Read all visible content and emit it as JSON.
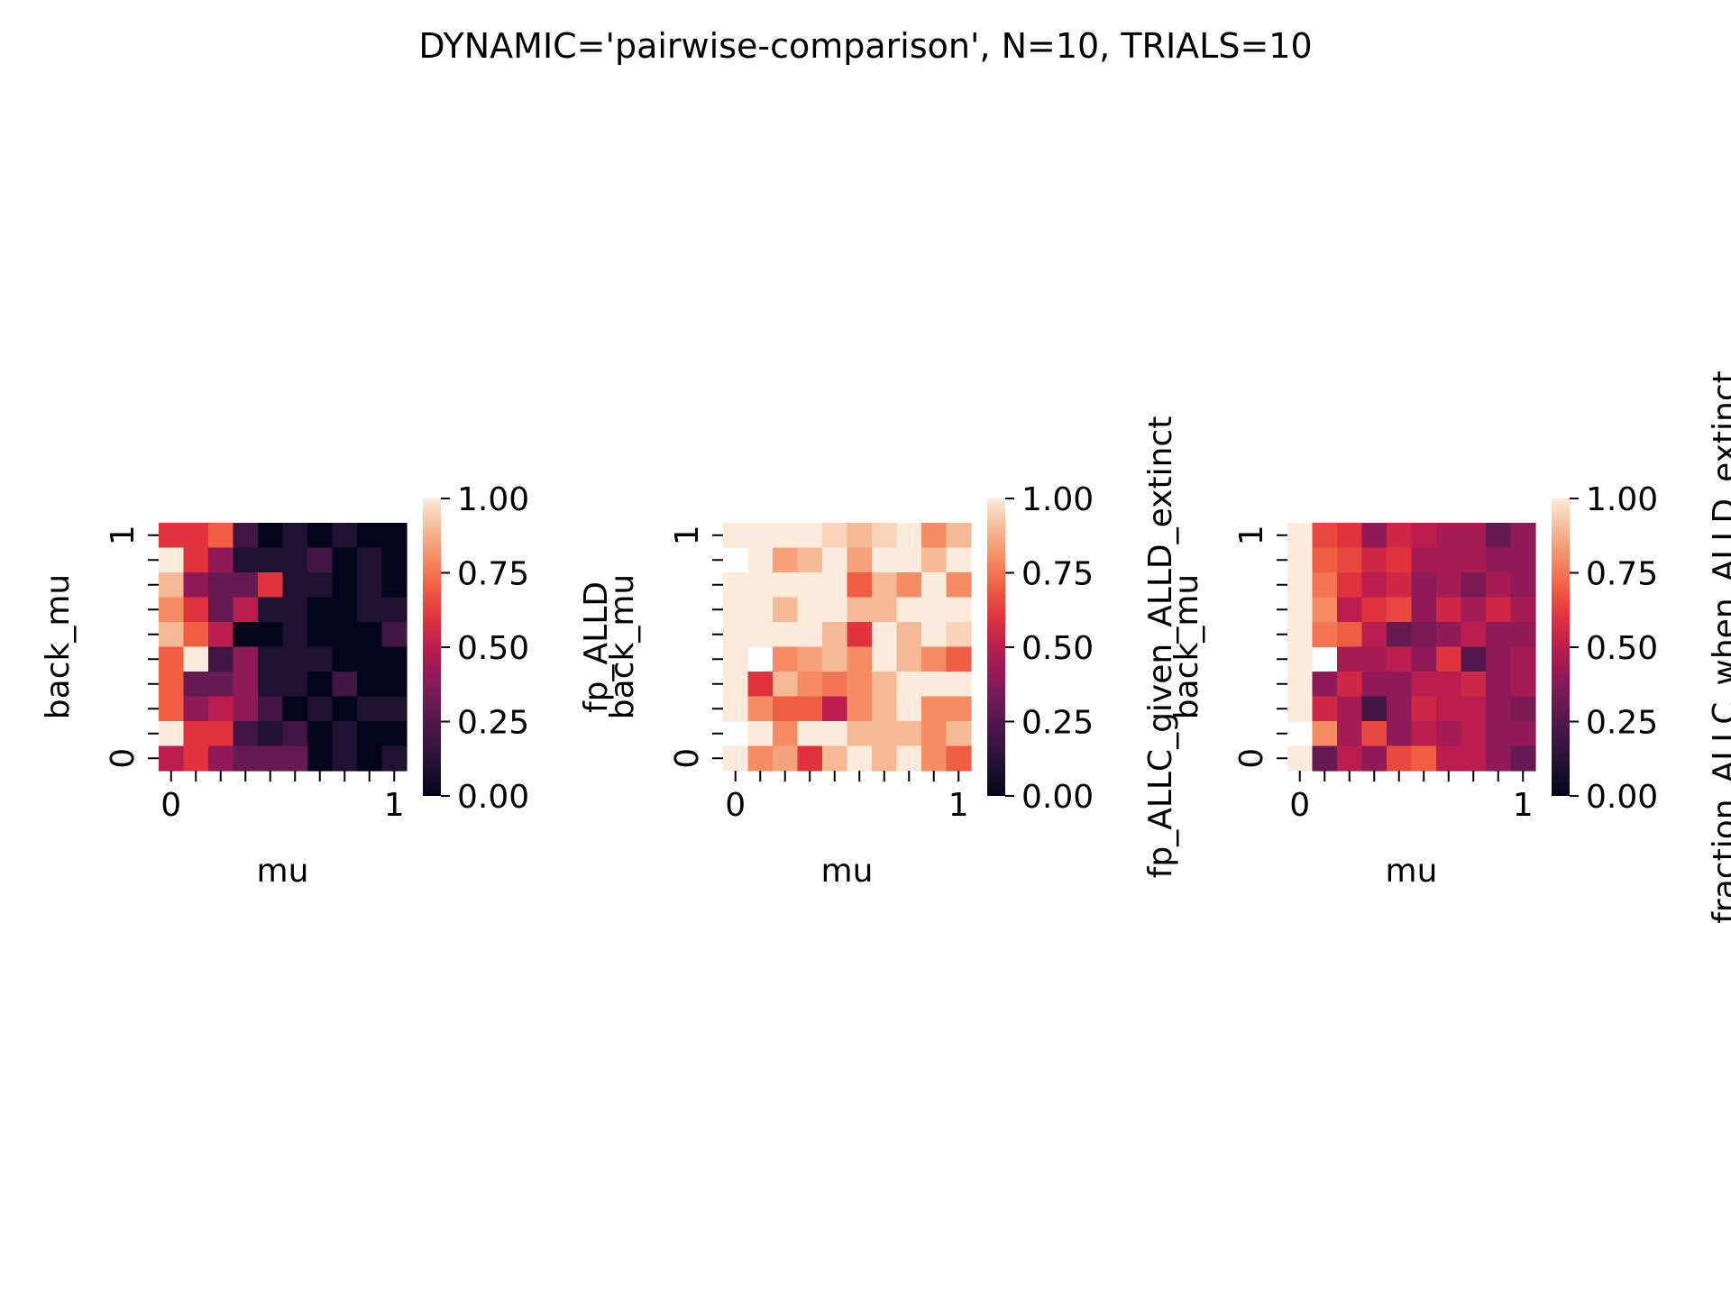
{
  "figure": {
    "suptitle": "DYNAMIC='pairwise-comparison', N=10, TRIALS=10"
  },
  "chart_data": [
    {
      "type": "heatmap",
      "colormap": "rocket",
      "xlabel": "mu",
      "ylabel": "back_mu",
      "xticklabels": [
        "0",
        "1"
      ],
      "yticklabels": [
        "0",
        "1"
      ],
      "colorbar": {
        "label": "fp_ALLD",
        "range": [
          0,
          1
        ],
        "ticks": [
          "0.00",
          "0.25",
          "0.50",
          "0.75",
          "1.00"
        ]
      },
      "rows_top_to_bottom": [
        [
          0.6,
          0.6,
          0.7,
          0.2,
          0.0,
          0.1,
          0.0,
          0.1,
          0.0,
          0.0
        ],
        [
          1.0,
          0.6,
          0.4,
          0.1,
          0.1,
          0.1,
          0.2,
          0.0,
          0.1,
          0.0
        ],
        [
          0.9,
          0.4,
          0.3,
          0.3,
          0.6,
          0.1,
          0.1,
          0.0,
          0.1,
          0.0
        ],
        [
          0.8,
          0.6,
          0.3,
          0.5,
          0.1,
          0.1,
          0.0,
          0.0,
          0.1,
          0.1
        ],
        [
          0.9,
          0.7,
          0.5,
          0.0,
          0.0,
          0.1,
          0.0,
          0.0,
          0.0,
          0.2
        ],
        [
          0.7,
          1.0,
          0.2,
          0.4,
          0.1,
          0.1,
          0.1,
          0.0,
          0.0,
          0.0
        ],
        [
          0.7,
          0.3,
          0.3,
          0.4,
          0.1,
          0.1,
          0.0,
          0.2,
          0.0,
          0.0
        ],
        [
          0.7,
          0.4,
          0.5,
          0.4,
          0.2,
          0.0,
          0.1,
          0.0,
          0.1,
          0.1
        ],
        [
          1.0,
          0.6,
          0.6,
          0.2,
          0.1,
          0.2,
          0.0,
          0.1,
          0.0,
          0.0
        ],
        [
          0.5,
          0.6,
          0.4,
          0.3,
          0.3,
          0.3,
          0.0,
          0.1,
          0.0,
          0.1
        ]
      ]
    },
    {
      "type": "heatmap",
      "colormap": "rocket",
      "xlabel": "mu",
      "ylabel": "back_mu",
      "xticklabels": [
        "0",
        "1"
      ],
      "yticklabels": [
        "0",
        "1"
      ],
      "colorbar": {
        "label": "fp_ALLC_given_ALLD_extinct",
        "range": [
          0,
          1
        ],
        "ticks": [
          "0.00",
          "0.25",
          "0.50",
          "0.75",
          "1.00"
        ]
      },
      "rows_top_to_bottom": [
        [
          1.0,
          1.0,
          1.0,
          1.0,
          0.95,
          0.9,
          0.95,
          1.0,
          0.8,
          0.9
        ],
        [
          null,
          1.0,
          0.85,
          0.9,
          1.0,
          0.85,
          1.0,
          1.0,
          0.9,
          1.0
        ],
        [
          1.0,
          1.0,
          1.0,
          1.0,
          1.0,
          0.7,
          0.9,
          0.8,
          1.0,
          0.8
        ],
        [
          1.0,
          1.0,
          0.9,
          1.0,
          1.0,
          0.9,
          0.9,
          1.0,
          1.0,
          1.0
        ],
        [
          1.0,
          1.0,
          1.0,
          1.0,
          0.9,
          0.6,
          1.0,
          0.9,
          1.0,
          0.95
        ],
        [
          1.0,
          null,
          0.8,
          0.85,
          0.9,
          0.8,
          1.0,
          0.9,
          0.8,
          0.7
        ],
        [
          1.0,
          0.6,
          0.9,
          0.8,
          0.75,
          0.8,
          0.9,
          1.0,
          1.0,
          1.0
        ],
        [
          1.0,
          0.8,
          0.7,
          0.7,
          0.5,
          0.8,
          0.9,
          1.0,
          0.8,
          0.8
        ],
        [
          null,
          1.0,
          0.8,
          1.0,
          1.0,
          0.9,
          0.9,
          0.9,
          0.8,
          0.9
        ],
        [
          1.0,
          0.8,
          0.85,
          0.6,
          0.9,
          1.0,
          0.9,
          1.0,
          0.8,
          0.7
        ]
      ]
    },
    {
      "type": "heatmap",
      "colormap": "rocket",
      "xlabel": "mu",
      "ylabel": "back_mu",
      "xticklabels": [
        "0",
        "1"
      ],
      "yticklabels": [
        "0",
        "1"
      ],
      "colorbar": {
        "label": "fraction_ALLC_when_ALLD_extinct",
        "range": [
          0,
          1
        ],
        "ticks": [
          "0.00",
          "0.25",
          "0.50",
          "0.75",
          "1.00"
        ]
      },
      "rows_top_to_bottom": [
        [
          1.0,
          0.65,
          0.6,
          0.4,
          0.55,
          0.5,
          0.45,
          0.45,
          0.3,
          0.4
        ],
        [
          1.0,
          0.7,
          0.65,
          0.55,
          0.6,
          0.45,
          0.45,
          0.45,
          0.4,
          0.4
        ],
        [
          1.0,
          0.75,
          0.6,
          0.5,
          0.55,
          0.4,
          0.45,
          0.35,
          0.45,
          0.4
        ],
        [
          1.0,
          0.8,
          0.5,
          0.6,
          0.65,
          0.4,
          0.55,
          0.45,
          0.55,
          0.45
        ],
        [
          1.0,
          0.75,
          0.7,
          0.5,
          0.3,
          0.35,
          0.4,
          0.5,
          0.4,
          0.4
        ],
        [
          1.0,
          null,
          0.45,
          0.45,
          0.5,
          0.4,
          0.6,
          0.25,
          0.4,
          0.45
        ],
        [
          1.0,
          0.4,
          0.55,
          0.4,
          0.4,
          0.5,
          0.5,
          0.55,
          0.4,
          0.45
        ],
        [
          1.0,
          0.55,
          0.45,
          0.2,
          0.4,
          0.55,
          0.5,
          0.5,
          0.4,
          0.35
        ],
        [
          null,
          0.8,
          0.45,
          0.65,
          0.4,
          0.5,
          0.45,
          0.5,
          0.4,
          0.4
        ],
        [
          1.0,
          0.3,
          0.5,
          0.4,
          0.65,
          0.7,
          0.5,
          0.5,
          0.4,
          0.3
        ]
      ]
    }
  ]
}
